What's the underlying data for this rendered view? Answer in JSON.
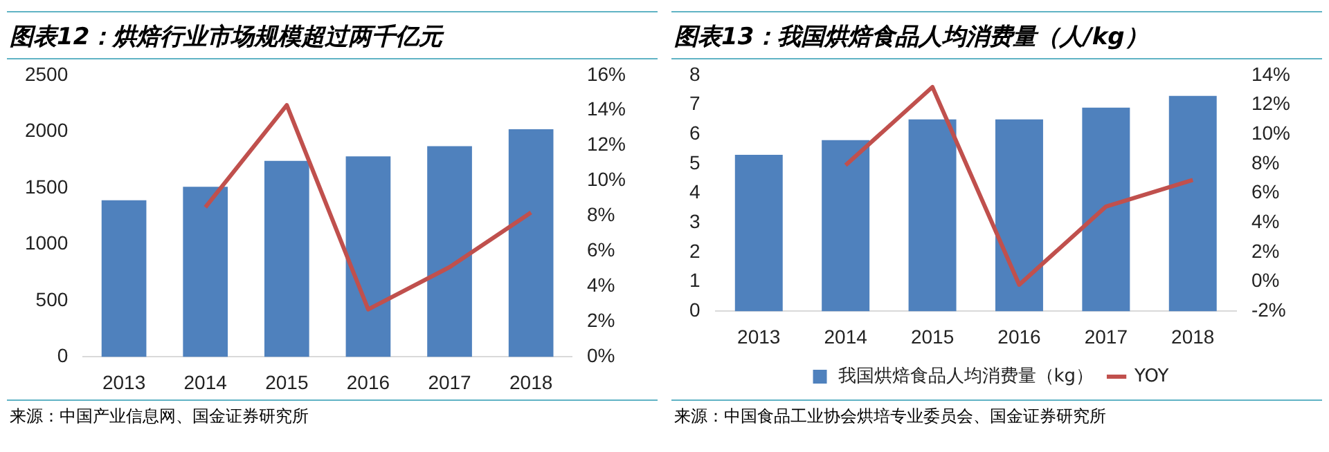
{
  "chart_data": [
    {
      "type": "bar",
      "title": "图表12：烘焙行业市场规模超过两千亿元",
      "categories": [
        "2013",
        "2014",
        "2015",
        "2016",
        "2017",
        "2018"
      ],
      "series": [
        {
          "color": "#4f81bd",
          "values": [
            1390,
            1510,
            1740,
            1780,
            1870,
            2020
          ]
        },
        {
          "type": "line",
          "axis": "y2",
          "color": "#c0504d",
          "values": [
            null,
            8.5,
            14.3,
            2.7,
            5.1,
            8.2
          ]
        }
      ],
      "ylim": [
        0,
        2500
      ],
      "yticks": [
        0,
        500,
        1000,
        1500,
        2000,
        2500
      ],
      "y2lim": [
        0,
        16
      ],
      "y2ticks": [
        {
          "value": 0,
          "label": "0%"
        },
        {
          "value": 2,
          "label": "2%"
        },
        {
          "value": 4,
          "label": "4%"
        },
        {
          "value": 6,
          "label": "6%"
        },
        {
          "value": 8,
          "label": "8%"
        },
        {
          "value": 10,
          "label": "10%"
        },
        {
          "value": 12,
          "label": "12%"
        },
        {
          "value": 14,
          "label": "14%"
        },
        {
          "value": 16,
          "label": "16%"
        }
      ],
      "marker": "none",
      "legend": false,
      "annotations": [
        "来源：中国产业信息网、国金证券研究所"
      ]
    },
    {
      "type": "bar",
      "title": "图表13：我国烘焙食品人均消费量（人/kg）",
      "categories": [
        "2013",
        "2014",
        "2015",
        "2016",
        "2017",
        "2018"
      ],
      "series": [
        {
          "name": "我国烘焙食品人均消费量（kg）",
          "color": "#4f81bd",
          "values": [
            5.3,
            5.8,
            6.5,
            6.5,
            6.9,
            7.3
          ]
        },
        {
          "type": "line",
          "name": "YOY",
          "axis": "y2",
          "color": "#c0504d",
          "values": [
            null,
            7.9,
            13.2,
            -0.2,
            5.1,
            6.9
          ]
        }
      ],
      "ylim": [
        0,
        8
      ],
      "yticks": [
        0,
        1,
        2,
        3,
        4,
        5,
        6,
        7,
        8
      ],
      "y2lim": [
        -2,
        14
      ],
      "y2ticks": [
        {
          "value": -2,
          "label": "-2%"
        },
        {
          "value": 0,
          "label": "0%"
        },
        {
          "value": 2,
          "label": "2%"
        },
        {
          "value": 4,
          "label": "4%"
        },
        {
          "value": 6,
          "label": "6%"
        },
        {
          "value": 8,
          "label": "8%"
        },
        {
          "value": 10,
          "label": "10%"
        },
        {
          "value": 12,
          "label": "12%"
        },
        {
          "value": 14,
          "label": "14%"
        }
      ],
      "marker": "none",
      "legend": "bottom",
      "annotations": [
        "来源：中国食品工业协会烘培专业委员会、国金证券研究所"
      ]
    }
  ]
}
